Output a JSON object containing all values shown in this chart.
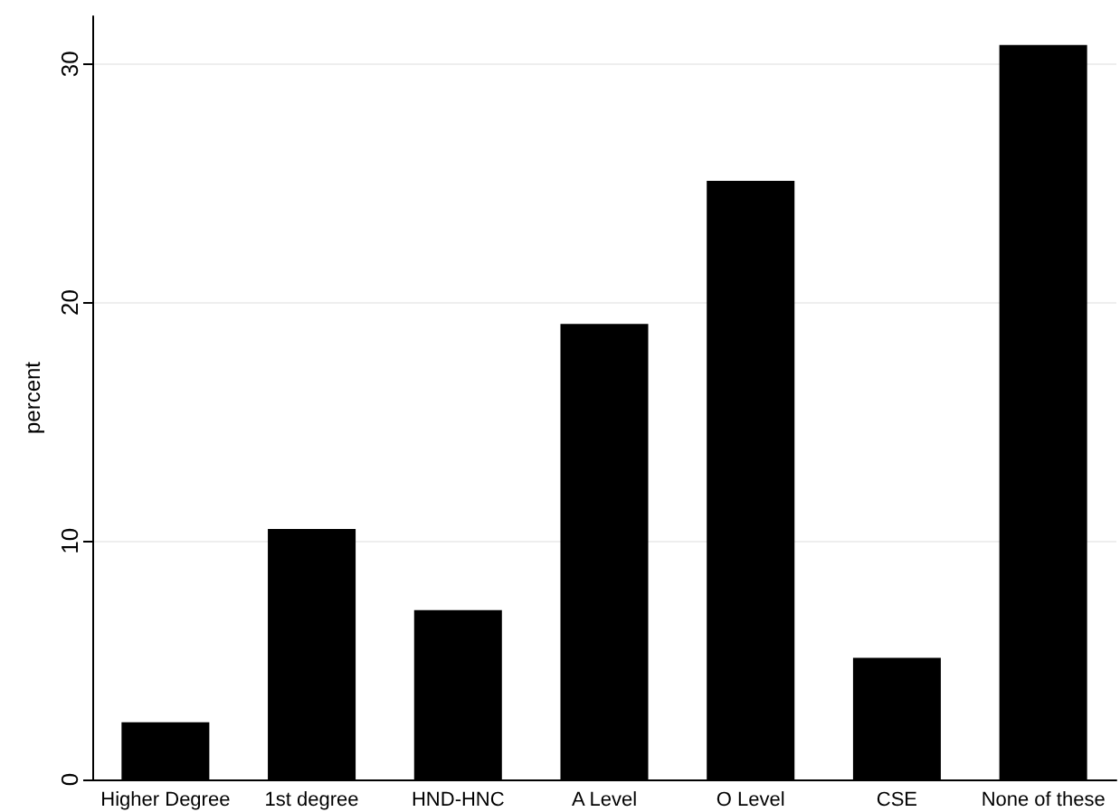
{
  "chart_data": {
    "type": "bar",
    "ylabel": "percent",
    "categories": [
      "Higher Degree",
      "1st degree",
      "HND-HNC",
      "A Level",
      "O Level",
      "CSE",
      "None of these"
    ],
    "values": [
      2.4,
      10.5,
      7.1,
      19.1,
      25.1,
      5.1,
      30.8
    ],
    "color": "#000000",
    "ylim": [
      0,
      32
    ],
    "yticks": [
      0,
      10,
      20,
      30
    ],
    "grid": "y"
  }
}
